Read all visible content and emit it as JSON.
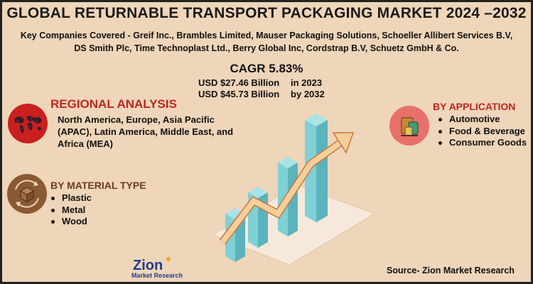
{
  "title": "GLOBAL RETURNABLE TRANSPORT PACKAGING MARKET 2024 –2032",
  "companies": {
    "line1": "Key Companies Covered - Greif Inc., Brambles Limited, Mauser Packaging Solutions, Schoeller Allibert Services B.V,",
    "line2": "DS Smith Plc, Time Technoplast Ltd., Berry Global Inc, Cordstrap B.V, Schuetz GmbH & Co."
  },
  "cagr": "CAGR 5.83%",
  "market": {
    "value_2023": "USD $27.46 Billion",
    "year_2023": "in 2023",
    "value_2032": "USD $45.73 Billion",
    "year_2032": "by 2032"
  },
  "regional": {
    "title": "REGIONAL ANALYSIS",
    "text": "North America, Europe, Asia Pacific (APAC), Latin America, Middle East, and Africa (MEA)"
  },
  "material": {
    "title": "BY MATERIAL TYPE",
    "items": [
      "Plastic",
      "Metal",
      "Wood"
    ]
  },
  "application": {
    "title": "BY APPLICATION",
    "items": [
      "Automotive",
      "Food & Beverage",
      "Consumer Goods"
    ]
  },
  "source": "Source- Zion Market Research",
  "logo": {
    "name": "Zion",
    "sub": "Market Research"
  },
  "colors": {
    "background": "#efd5b9",
    "region_accent": "#c0261f",
    "material_accent": "#8a5a34",
    "application_accent": "#e8706a",
    "bar_color": "#7fd1d6",
    "arrow_color": "#f3a96a"
  },
  "icons": {
    "regional": "world-map-icon",
    "material": "box-recycle-icon",
    "application": "products-icon"
  }
}
